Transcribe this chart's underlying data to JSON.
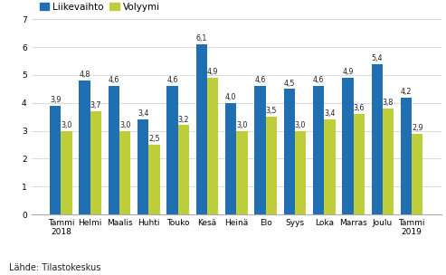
{
  "categories": [
    "Tammi\n2018",
    "Helmi",
    "Maalis",
    "Huhti",
    "Touko",
    "Kesä",
    "Heinä",
    "Elo",
    "Syys",
    "Loka",
    "Marras",
    "Joulu",
    "Tammi\n2019"
  ],
  "liikevaihto": [
    3.9,
    4.8,
    4.6,
    3.4,
    4.6,
    6.1,
    4.0,
    4.6,
    4.5,
    4.6,
    4.9,
    5.4,
    4.2
  ],
  "volyymi": [
    3.0,
    3.7,
    3.0,
    2.5,
    3.2,
    4.9,
    3.0,
    3.5,
    3.0,
    3.4,
    3.6,
    3.8,
    2.9
  ],
  "bar_color_liikevaihto": "#1F6FB2",
  "bar_color_volyymi": "#BECE3A",
  "legend_liikevaihto": "Liikevaihto",
  "legend_volyymi": "Volyymi",
  "ylim": [
    0,
    7
  ],
  "yticks": [
    0,
    1,
    2,
    3,
    4,
    5,
    6,
    7
  ],
  "source": "Lähde: Tilastokeskus",
  "bar_width": 0.38,
  "label_fontsize": 5.8,
  "tick_fontsize": 6.5,
  "legend_fontsize": 7.5,
  "source_fontsize": 7.0
}
